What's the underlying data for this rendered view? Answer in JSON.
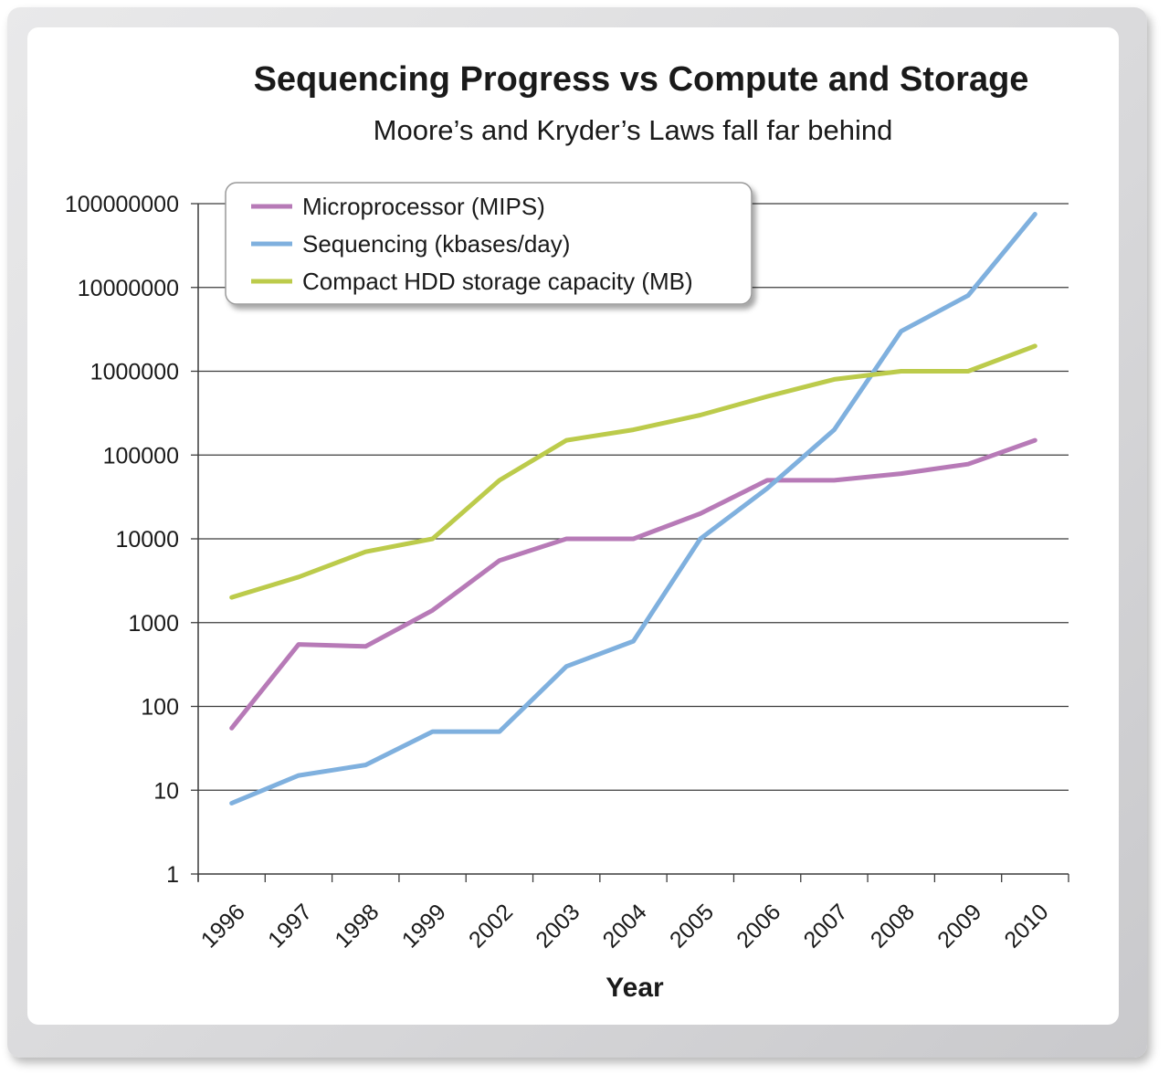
{
  "chart_data": {
    "type": "line",
    "title": "Sequencing Progress vs Compute and Storage",
    "subtitle": "Moore’s and Kryder’s Laws fall far behind",
    "xlabel": "Year",
    "ylabel": "",
    "y_scale": "log",
    "ylim": [
      1,
      100000000
    ],
    "y_ticks": [
      1,
      10,
      100,
      1000,
      10000,
      100000,
      1000000,
      10000000,
      100000000
    ],
    "y_tick_labels": [
      "1",
      "10",
      "100",
      "1000",
      "10000",
      "100000",
      "1000000",
      "10000000",
      "100000000"
    ],
    "categories": [
      "1996",
      "1997",
      "1998",
      "1999",
      "2002",
      "2003",
      "2004",
      "2005",
      "2006",
      "2007",
      "2008",
      "2009",
      "2010"
    ],
    "grid": "horizontal",
    "legend_position": "top-left",
    "series": [
      {
        "name": "Microprocessor (MIPS)",
        "color": "#b77ab7",
        "values": [
          55,
          550,
          520,
          1400,
          5500,
          10000,
          10000,
          20000,
          50000,
          50000,
          60000,
          78000,
          150000
        ]
      },
      {
        "name": "Sequencing (kbases/day)",
        "color": "#7fb0de",
        "values": [
          7,
          15,
          20,
          50,
          50,
          300,
          600,
          10000,
          40000,
          200000,
          3000000,
          8000000,
          75000000
        ]
      },
      {
        "name": "Compact HDD storage capacity (MB)",
        "color": "#bccb4b",
        "values": [
          2000,
          3500,
          7000,
          10000,
          50000,
          150000,
          200000,
          300000,
          500000,
          800000,
          1000000,
          1000000,
          2000000
        ]
      }
    ]
  }
}
